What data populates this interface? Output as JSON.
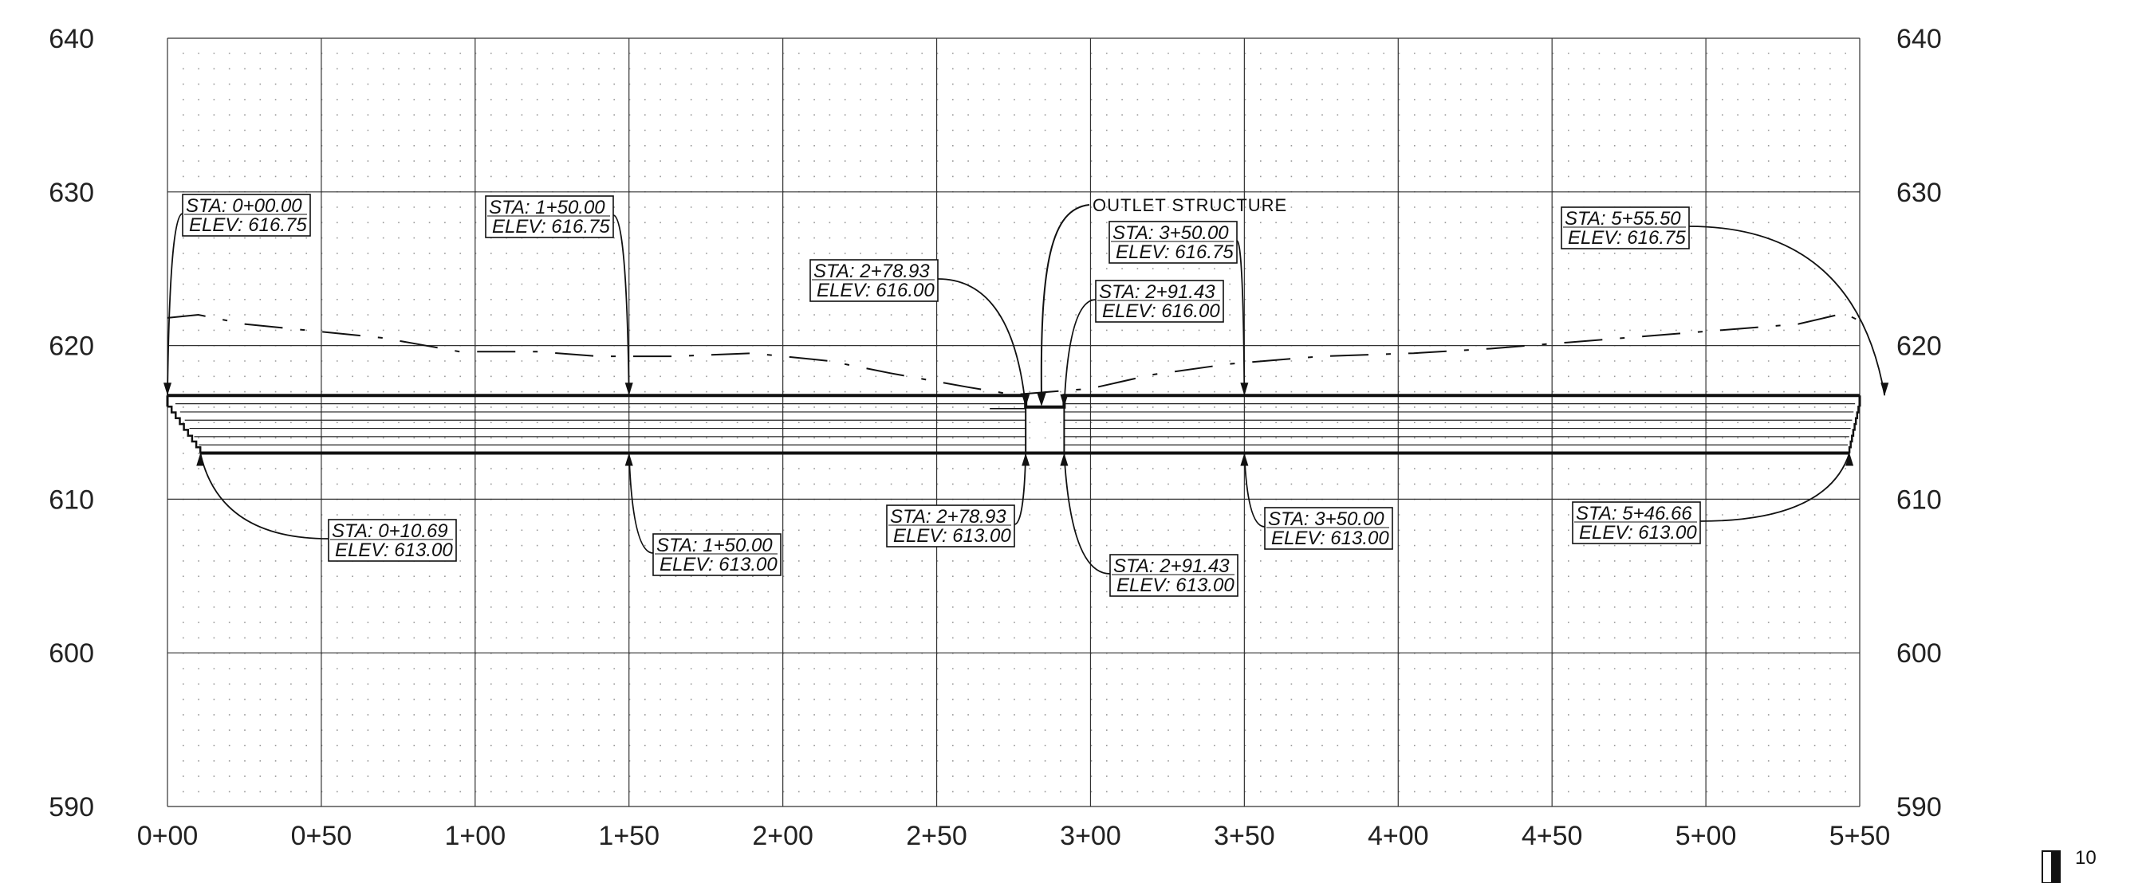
{
  "drawing": {
    "type": "pond profile section",
    "elevation_axis": {
      "ticks": [
        "590",
        "600",
        "610",
        "620",
        "630",
        "640"
      ],
      "range": [
        590,
        640
      ]
    },
    "station_axis": {
      "ticks": [
        "0+00",
        "0+50",
        "1+00",
        "1+50",
        "2+00",
        "2+50",
        "3+00",
        "3+50",
        "4+00",
        "4+50",
        "5+00",
        "5+50"
      ],
      "range_ft": [
        0,
        550
      ]
    },
    "grid": true,
    "corner_label": "10",
    "colors": {
      "line": "#111111",
      "grid": "#333333",
      "dots": "#999999"
    }
  },
  "note": {
    "text": "OUTLET STRUCTURE"
  },
  "callouts": [
    {
      "sta": "STA: 0+00.00",
      "elev": "ELEV: 616.75",
      "sta_ft": 0,
      "elev_ft": 616.75
    },
    {
      "sta": "STA: 1+50.00",
      "elev": "ELEV: 616.75",
      "sta_ft": 150,
      "elev_ft": 616.75
    },
    {
      "sta": "STA: 2+78.93",
      "elev": "ELEV: 616.00",
      "sta_ft": 278.93,
      "elev_ft": 616.0
    },
    {
      "sta": "STA: 2+91.43",
      "elev": "ELEV: 616.00",
      "sta_ft": 291.43,
      "elev_ft": 616.0
    },
    {
      "sta": "STA: 3+50.00",
      "elev": "ELEV: 616.75",
      "sta_ft": 350,
      "elev_ft": 616.75
    },
    {
      "sta": "STA: 5+55.50",
      "elev": "ELEV: 616.75",
      "sta_ft": 555.5,
      "elev_ft": 616.75
    },
    {
      "sta": "STA: 0+10.69",
      "elev": "ELEV: 613.00",
      "sta_ft": 10.69,
      "elev_ft": 613.0
    },
    {
      "sta": "STA: 1+50.00",
      "elev": "ELEV: 613.00",
      "sta_ft": 150,
      "elev_ft": 613.0
    },
    {
      "sta": "STA: 2+78.93",
      "elev": "ELEV: 613.00",
      "sta_ft": 278.93,
      "elev_ft": 613.0
    },
    {
      "sta": "STA: 2+91.43",
      "elev": "ELEV: 613.00",
      "sta_ft": 291.43,
      "elev_ft": 613.0
    },
    {
      "sta": "STA: 3+50.00",
      "elev": "ELEV: 613.00",
      "sta_ft": 350,
      "elev_ft": 613.0
    },
    {
      "sta": "STA: 5+46.66",
      "elev": "ELEV: 613.00",
      "sta_ft": 546.66,
      "elev_ft": 613.0
    }
  ]
}
